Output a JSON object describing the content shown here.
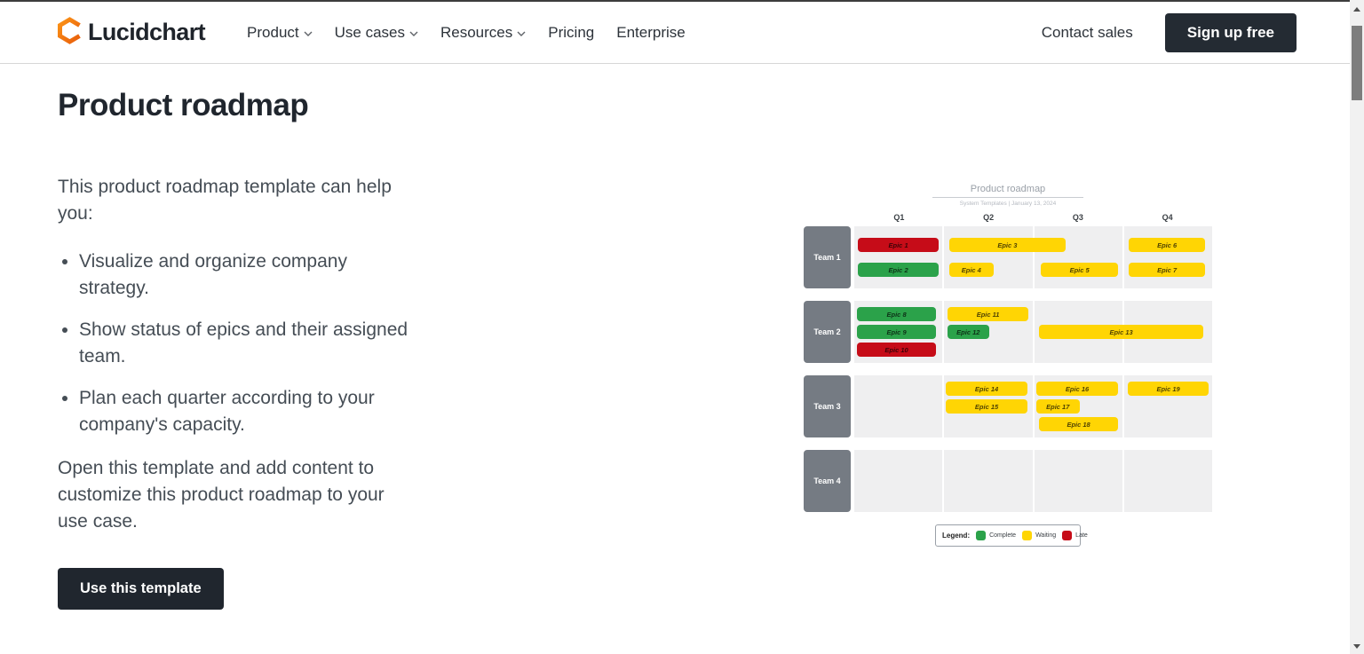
{
  "nav": {
    "brand": "Lucidchart",
    "items": [
      {
        "label": "Product",
        "has_dropdown": true
      },
      {
        "label": "Use cases",
        "has_dropdown": true
      },
      {
        "label": "Resources",
        "has_dropdown": true
      },
      {
        "label": "Pricing",
        "has_dropdown": false
      },
      {
        "label": "Enterprise",
        "has_dropdown": false
      }
    ],
    "contact_sales_label": "Contact sales",
    "signup_label": "Sign up free"
  },
  "content": {
    "title": "Product roadmap",
    "intro": "This product roadmap template can help\nyou:",
    "bullets": [
      "Visualize and organize company\nstrategy.",
      "Show status of epics and their assigned\nteam.",
      "Plan each quarter according to your\ncompany's capacity."
    ],
    "outro": "Open this template and add content to\ncustomize this product roadmap to your\nuse case.",
    "cta_label": "Use this template"
  },
  "chart_data": {
    "type": "roadmap-timeline",
    "title": "Product roadmap",
    "subtitle": "System Templates | January 13, 2024",
    "quarters": [
      "Q1",
      "Q2",
      "Q3",
      "Q4"
    ],
    "status_colors": {
      "complete": "#2ba24a",
      "waiting": "#ffd504",
      "late": "#c60c18"
    },
    "legend": {
      "label": "Legend:",
      "items": [
        {
          "name": "Complete",
          "status": "complete"
        },
        {
          "name": "Waiting",
          "status": "waiting"
        },
        {
          "name": "Late",
          "status": "late"
        }
      ]
    },
    "teams": [
      {
        "name": "Team 1",
        "lanes": [
          [
            {
              "label": "Epic 1",
              "status": "late",
              "start": 0.04,
              "span": 0.92
            },
            {
              "label": "Epic 3",
              "status": "waiting",
              "start": 1.06,
              "span": 1.32
            },
            {
              "label": "Epic 6",
              "status": "waiting",
              "start": 3.06,
              "span": 0.87
            }
          ],
          [
            {
              "label": "Epic 2",
              "status": "complete",
              "start": 0.04,
              "span": 0.92
            },
            {
              "label": "Epic 4",
              "status": "waiting",
              "start": 1.06,
              "span": 0.5
            },
            {
              "label": "Epic 5",
              "status": "waiting",
              "start": 2.08,
              "span": 0.88
            },
            {
              "label": "Epic 7",
              "status": "waiting",
              "start": 3.06,
              "span": 0.87
            }
          ]
        ]
      },
      {
        "name": "Team 2",
        "lanes": [
          [
            {
              "label": "Epic 8",
              "status": "complete",
              "start": 0.03,
              "span": 0.9
            },
            {
              "label": "Epic 11",
              "status": "waiting",
              "start": 1.04,
              "span": 0.92
            }
          ],
          [
            {
              "label": "Epic 9",
              "status": "complete",
              "start": 0.03,
              "span": 0.9
            },
            {
              "label": "Epic 12",
              "status": "complete",
              "start": 1.04,
              "span": 0.47
            },
            {
              "label": "Epic 13",
              "status": "waiting",
              "start": 2.06,
              "span": 1.87
            }
          ],
          [
            {
              "label": "Epic 10",
              "status": "late",
              "start": 0.03,
              "span": 0.9
            }
          ]
        ]
      },
      {
        "name": "Team 3",
        "lanes": [
          [
            {
              "label": "Epic 14",
              "status": "waiting",
              "start": 1.02,
              "span": 0.93
            },
            {
              "label": "Epic 16",
              "status": "waiting",
              "start": 2.03,
              "span": 0.93
            },
            {
              "label": "Epic 19",
              "status": "waiting",
              "start": 3.05,
              "span": 0.92
            }
          ],
          [
            {
              "label": "Epic 15",
              "status": "waiting",
              "start": 1.02,
              "span": 0.93
            },
            {
              "label": "Epic 17",
              "status": "waiting",
              "start": 2.03,
              "span": 0.49
            }
          ],
          [
            {
              "label": "Epic 18",
              "status": "waiting",
              "start": 2.06,
              "span": 0.9
            }
          ]
        ]
      },
      {
        "name": "Team 4",
        "lanes": []
      }
    ]
  },
  "colors": {
    "accent_orange": "#f46a0f",
    "dark_button": "#242b33",
    "team_box": "#757b83",
    "row_bg": "#efeff0"
  }
}
